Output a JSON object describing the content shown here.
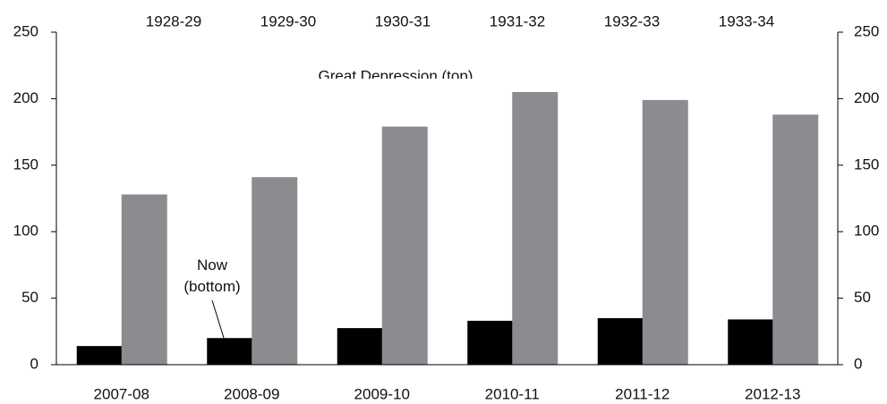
{
  "chart_data": {
    "type": "bar",
    "categories": [
      "2007-08",
      "2008-09",
      "2009-10",
      "2010-11",
      "2011-12",
      "2012-13"
    ],
    "top_categories": [
      "1928-29",
      "1929-30",
      "1930-31",
      "1931-32",
      "1932-33",
      "1933-34"
    ],
    "series": [
      {
        "name": "Now (bottom)",
        "color": "#000000",
        "values": [
          14,
          20,
          27.5,
          33,
          35,
          34
        ]
      },
      {
        "name": "Great Depression (top)",
        "color": "#8a8c8f",
        "values": [
          128,
          141,
          179,
          205,
          199,
          188
        ]
      }
    ],
    "ylim": [
      0,
      250
    ],
    "yticks": [
      0,
      50,
      100,
      150,
      200,
      250
    ],
    "y2lim": [
      0,
      250
    ],
    "y2ticks": [
      0,
      50,
      100,
      150,
      200,
      250
    ]
  }
}
